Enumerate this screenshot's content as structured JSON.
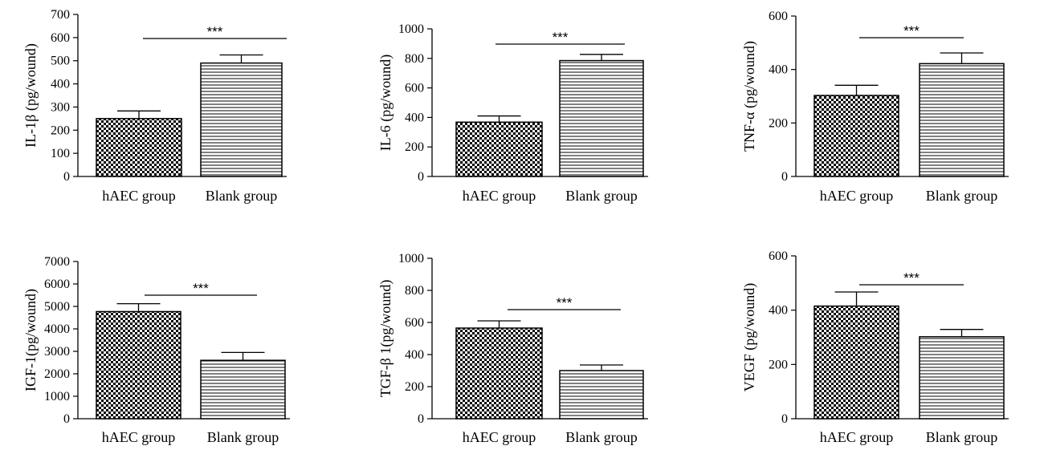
{
  "chart_data": [
    {
      "type": "bar",
      "ylabel": "IL-1β (pg/wound)",
      "categories": [
        "hAEC group",
        "Blank group"
      ],
      "values": [
        250,
        490
      ],
      "errors": [
        33,
        35
      ],
      "ylim": [
        0,
        700
      ],
      "yticks": [
        "0",
        "100",
        "200",
        "300",
        "400",
        "500",
        "600",
        "700"
      ],
      "significance": "***",
      "patterns": [
        "checker",
        "hlines"
      ]
    },
    {
      "type": "bar",
      "ylabel": "IL-6 (pg/wound)",
      "categories": [
        "hAEC group",
        "Blank group"
      ],
      "values": [
        368,
        785
      ],
      "errors": [
        42,
        42
      ],
      "ylim": [
        0,
        1000
      ],
      "yticks": [
        "0",
        "200",
        "400",
        "600",
        "800",
        "1000"
      ],
      "significance": "***",
      "patterns": [
        "checker",
        "hlines"
      ]
    },
    {
      "type": "bar",
      "ylabel": "TNF-α (pg/wound)",
      "categories": [
        "hAEC group",
        "Blank group"
      ],
      "values": [
        303,
        422
      ],
      "errors": [
        38,
        40
      ],
      "ylim": [
        0,
        600
      ],
      "yticks": [
        "0",
        "200",
        "400",
        "600"
      ],
      "significance": "***",
      "patterns": [
        "checker",
        "hlines"
      ]
    },
    {
      "type": "bar",
      "ylabel": "IGF-1(pg/wound)",
      "categories": [
        "hAEC group",
        "Blank group"
      ],
      "values": [
        4770,
        2600
      ],
      "errors": [
        350,
        350
      ],
      "ylim": [
        0,
        7000
      ],
      "yticks": [
        "0",
        "1000",
        "2000",
        "3000",
        "4000",
        "5000",
        "6000",
        "7000"
      ],
      "significance": "***",
      "patterns": [
        "checker",
        "hlines"
      ]
    },
    {
      "type": "bar",
      "ylabel": "TGF-β 1(pg/wound)",
      "categories": [
        "hAEC group",
        "Blank group"
      ],
      "values": [
        565,
        300
      ],
      "errors": [
        45,
        35
      ],
      "ylim": [
        0,
        1000
      ],
      "yticks": [
        "0",
        "200",
        "400",
        "600",
        "800",
        "1000"
      ],
      "significance": "***",
      "patterns": [
        "checker",
        "hlines"
      ]
    },
    {
      "type": "bar",
      "ylabel": "VEGF (pg/wound)",
      "categories": [
        "hAEC group",
        "Blank group"
      ],
      "values": [
        415,
        302
      ],
      "errors": [
        52,
        27
      ],
      "ylim": [
        0,
        600
      ],
      "yticks": [
        "0",
        "200",
        "400",
        "600"
      ],
      "significance": "***",
      "patterns": [
        "checker",
        "hlines"
      ]
    }
  ]
}
